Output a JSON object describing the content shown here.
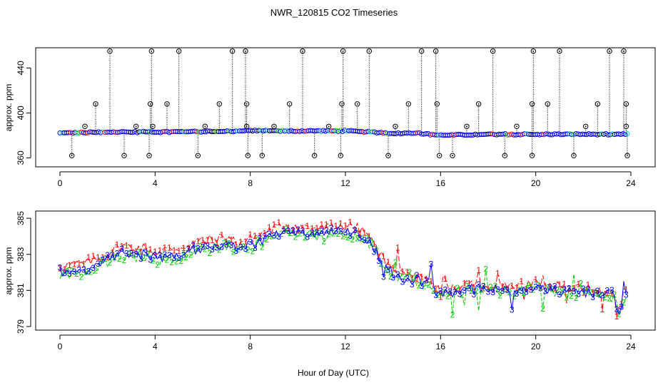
{
  "chart_data": [
    {
      "type": "scatter",
      "panel": "top",
      "title": "NWR_120815  CO2 Timeseries",
      "xlabel": "",
      "ylabel": "approx. ppm",
      "xlim": [
        0,
        24
      ],
      "ylim": [
        352,
        458
      ],
      "xticks": [
        "0",
        "4",
        "8",
        "12",
        "16",
        "20",
        "24"
      ],
      "yticks": [
        "360",
        "400",
        "440"
      ],
      "baseline": [
        [
          0,
          382
        ],
        [
          2,
          383
        ],
        [
          4,
          383
        ],
        [
          8,
          384
        ],
        [
          12,
          384
        ],
        [
          13,
          383
        ],
        [
          14,
          382
        ],
        [
          15,
          382
        ],
        [
          16,
          380
        ],
        [
          18,
          381
        ],
        [
          20,
          381
        ],
        [
          24,
          381
        ]
      ],
      "spikes": [
        {
          "x": 2.1,
          "y": 455
        },
        {
          "x": 3.85,
          "y": 455
        },
        {
          "x": 5.0,
          "y": 455
        },
        {
          "x": 7.25,
          "y": 455
        },
        {
          "x": 7.8,
          "y": 455
        },
        {
          "x": 10.2,
          "y": 455
        },
        {
          "x": 11.9,
          "y": 455
        },
        {
          "x": 13.0,
          "y": 455
        },
        {
          "x": 15.2,
          "y": 455
        },
        {
          "x": 15.8,
          "y": 455
        },
        {
          "x": 18.2,
          "y": 455
        },
        {
          "x": 19.9,
          "y": 455
        },
        {
          "x": 21.0,
          "y": 455
        },
        {
          "x": 23.1,
          "y": 455
        },
        {
          "x": 23.7,
          "y": 455
        },
        {
          "x": 1.5,
          "y": 408
        },
        {
          "x": 3.8,
          "y": 408
        },
        {
          "x": 4.5,
          "y": 408
        },
        {
          "x": 6.7,
          "y": 408
        },
        {
          "x": 7.85,
          "y": 408
        },
        {
          "x": 9.65,
          "y": 408
        },
        {
          "x": 11.85,
          "y": 408
        },
        {
          "x": 12.5,
          "y": 408
        },
        {
          "x": 14.65,
          "y": 408
        },
        {
          "x": 15.85,
          "y": 408
        },
        {
          "x": 17.6,
          "y": 408
        },
        {
          "x": 19.85,
          "y": 408
        },
        {
          "x": 20.5,
          "y": 408
        },
        {
          "x": 22.6,
          "y": 408
        },
        {
          "x": 23.8,
          "y": 408
        },
        {
          "x": 0.5,
          "y": 362
        },
        {
          "x": 2.7,
          "y": 362
        },
        {
          "x": 3.75,
          "y": 362
        },
        {
          "x": 5.8,
          "y": 362
        },
        {
          "x": 7.9,
          "y": 362
        },
        {
          "x": 8.5,
          "y": 362
        },
        {
          "x": 10.7,
          "y": 362
        },
        {
          "x": 11.8,
          "y": 362
        },
        {
          "x": 13.8,
          "y": 362
        },
        {
          "x": 15.95,
          "y": 362
        },
        {
          "x": 16.5,
          "y": 362
        },
        {
          "x": 18.7,
          "y": 362
        },
        {
          "x": 19.85,
          "y": 362
        },
        {
          "x": 21.6,
          "y": 362
        },
        {
          "x": 23.85,
          "y": 362
        },
        {
          "x": 1.05,
          "y": 388
        },
        {
          "x": 3.2,
          "y": 388
        },
        {
          "x": 3.9,
          "y": 388
        },
        {
          "x": 6.1,
          "y": 388
        },
        {
          "x": 7.85,
          "y": 388
        },
        {
          "x": 9.0,
          "y": 388
        },
        {
          "x": 11.3,
          "y": 388
        },
        {
          "x": 14.1,
          "y": 388
        },
        {
          "x": 17.1,
          "y": 388
        },
        {
          "x": 19.2,
          "y": 388
        },
        {
          "x": 22.1,
          "y": 388
        },
        {
          "x": 23.8,
          "y": 388
        }
      ]
    },
    {
      "type": "line",
      "panel": "bottom",
      "title": "",
      "xlabel": "Hour of Day (UTC)",
      "ylabel": "approx. ppm",
      "xlim": [
        0,
        24
      ],
      "ylim": [
        378.8,
        385.4
      ],
      "xticks": [
        "0",
        "4",
        "8",
        "12",
        "16",
        "20",
        "24"
      ],
      "yticks": [
        "379",
        "381",
        "383",
        "385"
      ],
      "series": [
        {
          "name": "1",
          "label": "1",
          "color": "#ff0000",
          "offset": 0.35
        },
        {
          "name": "2",
          "label": "2",
          "color": "#00cc00",
          "offset": -0.15
        },
        {
          "name": "3",
          "label": "3",
          "color": "#0000ff",
          "offset": 0.0
        }
      ],
      "trend": [
        [
          0,
          382.0
        ],
        [
          1,
          382.1
        ],
        [
          2,
          382.7
        ],
        [
          2.5,
          383.1
        ],
        [
          3.5,
          383.0
        ],
        [
          4,
          382.8
        ],
        [
          5,
          383.0
        ],
        [
          6,
          383.4
        ],
        [
          7,
          383.6
        ],
        [
          7.5,
          383.3
        ],
        [
          8,
          383.5
        ],
        [
          9,
          384.1
        ],
        [
          9.5,
          384.3
        ],
        [
          10,
          384.2
        ],
        [
          11,
          384.1
        ],
        [
          12,
          384.3
        ],
        [
          12.5,
          384.1
        ],
        [
          13,
          383.7
        ],
        [
          13.5,
          382.7
        ],
        [
          14,
          381.9
        ],
        [
          14.5,
          381.6
        ],
        [
          15,
          381.6
        ],
        [
          15.5,
          381.4
        ],
        [
          16,
          380.7
        ],
        [
          16.5,
          380.9
        ],
        [
          17,
          381.1
        ],
        [
          18,
          381.1
        ],
        [
          19,
          381.0
        ],
        [
          20,
          381.2
        ],
        [
          21,
          381.0
        ],
        [
          22,
          380.9
        ],
        [
          23,
          380.8
        ],
        [
          23.3,
          380.7
        ],
        [
          23.5,
          379.7
        ],
        [
          23.7,
          380.6
        ],
        [
          23.9,
          381.0
        ]
      ]
    }
  ]
}
